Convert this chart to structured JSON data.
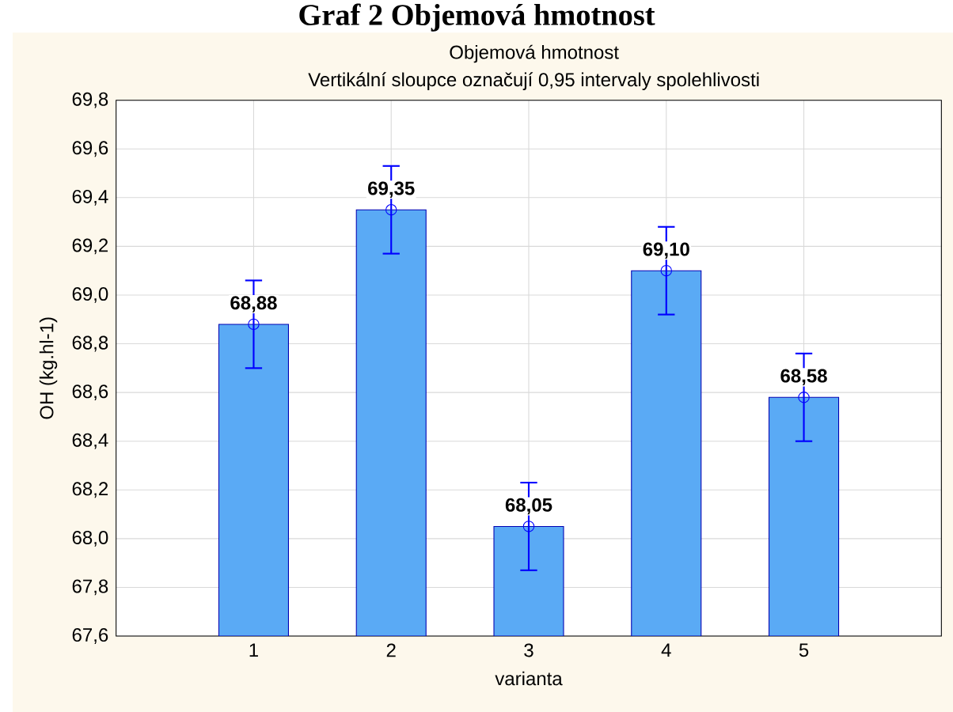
{
  "chart_data": {
    "type": "bar",
    "title": "Graf 2 Objemová hmotnost",
    "subtitle": "Objemová hmotnost",
    "annotations": [
      "Vertikální sloupce označují 0,95 intervaly spolehlivosti"
    ],
    "xlabel": "varianta",
    "ylabel": "OH (kg.hl-1)",
    "categories": [
      "1",
      "2",
      "3",
      "4",
      "5"
    ],
    "series": [
      {
        "color": "#5aaaf5",
        "values": [
          68.88,
          69.35,
          68.05,
          69.1,
          68.58
        ],
        "value_labels": [
          "68,88",
          "69,35",
          "68,05",
          "69,10",
          "68,58"
        ]
      },
      {
        "type": "scatter",
        "color": "#0000ff",
        "marker": "circle",
        "x": [
          "1",
          "2",
          "3",
          "4",
          "5"
        ],
        "values": [
          68.88,
          69.35,
          68.05,
          69.1,
          68.58
        ],
        "errors": [
          0.18,
          0.18,
          0.18,
          0.18,
          0.18
        ]
      }
    ],
    "grid": true,
    "ylim": [
      67.6,
      69.8
    ],
    "yticks": [
      {
        "value": 67.6,
        "label": "67,6"
      },
      {
        "value": 67.8,
        "label": "67,8"
      },
      {
        "value": 68.0,
        "label": "68,0"
      },
      {
        "value": 68.2,
        "label": "68,2"
      },
      {
        "value": 68.4,
        "label": "68,4"
      },
      {
        "value": 68.6,
        "label": "68,6"
      },
      {
        "value": 68.8,
        "label": "68,8"
      },
      {
        "value": 69.0,
        "label": "69,0"
      },
      {
        "value": 69.2,
        "label": "69,2"
      },
      {
        "value": 69.4,
        "label": "69,4"
      },
      {
        "value": 69.6,
        "label": "69,6"
      },
      {
        "value": 69.8,
        "label": "69,8"
      }
    ]
  }
}
